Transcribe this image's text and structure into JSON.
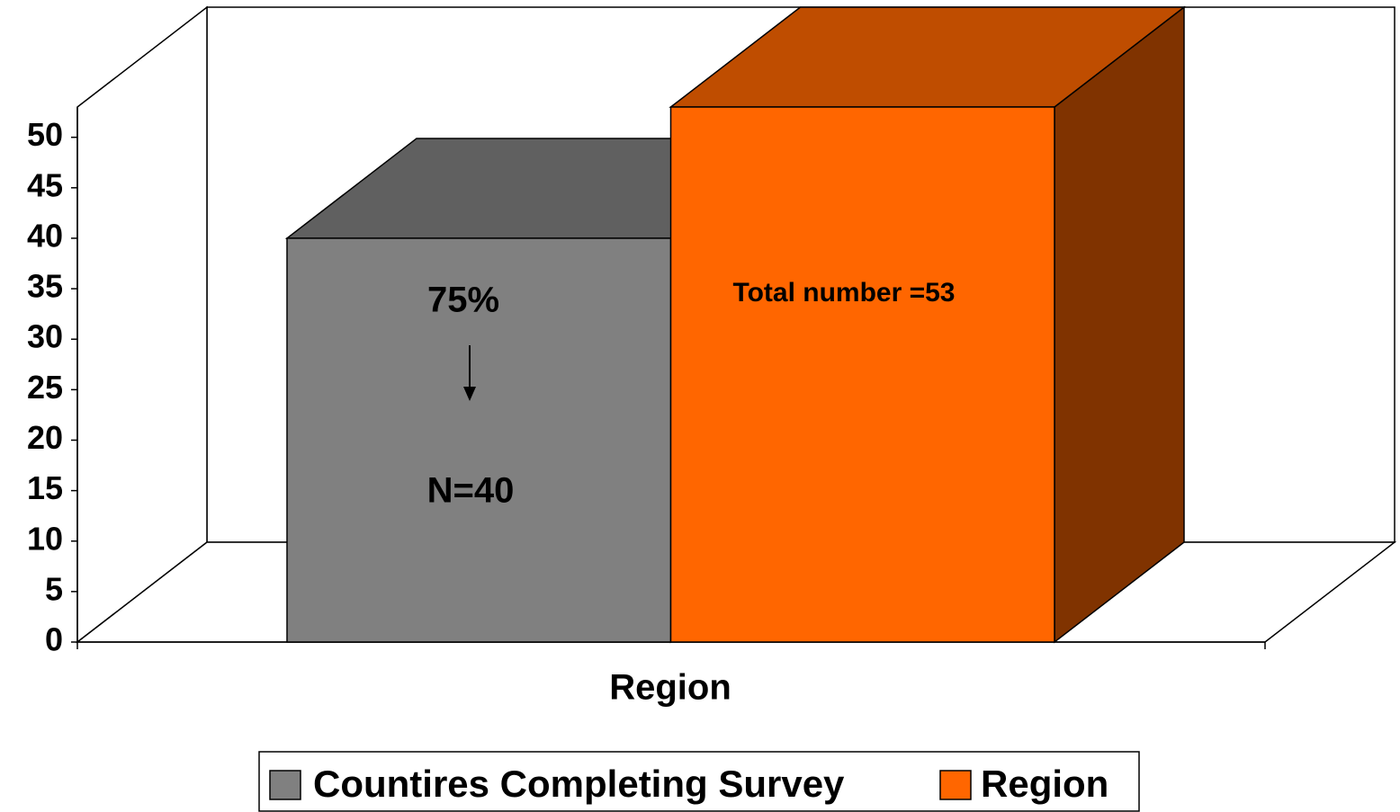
{
  "chart_data": {
    "type": "bar3d",
    "categories": [
      null
    ],
    "series": [
      {
        "name": "Countires Completing Survey",
        "color": "#808080",
        "values": [
          40
        ],
        "value_labels": [
          "N=40"
        ]
      },
      {
        "name": "Region",
        "color": "#ff6600",
        "values": [
          53
        ],
        "value_labels": [
          "Total number =53"
        ]
      }
    ],
    "x_label": "Region",
    "annotations": [
      "75%"
    ],
    "ylim": [
      0,
      53
    ],
    "yticks": [
      0,
      5,
      10,
      15,
      20,
      25,
      30,
      35,
      40,
      45,
      50
    ],
    "legend": "bottom"
  }
}
